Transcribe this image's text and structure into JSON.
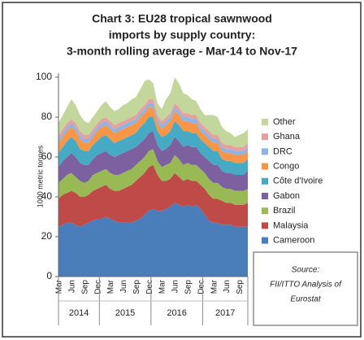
{
  "chart_data": {
    "type": "stacked_area",
    "title_lines": [
      "Chart 3: EU28 tropical sawnwood",
      "imports by supply country:",
      "3-month rolling average - Mar-14 to Nov-17"
    ],
    "y_label": "1000 metric tonnes",
    "source_lines": [
      "Source:",
      "FII/ITTO Analysis of",
      "Eurostat"
    ],
    "categories": [
      "Mar",
      null,
      null,
      "Jun",
      null,
      null,
      "Sep",
      null,
      null,
      "Dec",
      null,
      null,
      "Mar",
      null,
      null,
      "Jun",
      null,
      null,
      "Sep",
      null,
      null,
      "Dec",
      null,
      null,
      "Mar",
      null,
      null,
      "Jun",
      null,
      null,
      "Sep",
      null,
      null,
      "Dec",
      null,
      null,
      "Mar",
      null,
      null,
      "Jun",
      null,
      null,
      "Sep",
      null,
      null
    ],
    "x_groups": [
      "2014",
      "2015",
      "2016",
      "2017"
    ],
    "ylim": [
      0,
      100
    ],
    "yticks": [
      0,
      20,
      40,
      60,
      80,
      100
    ],
    "legend": "right",
    "series": [
      {
        "name": "Cameroon",
        "color": "#4a7ebb",
        "values": [
          25,
          26,
          27,
          27,
          26,
          25,
          26,
          27,
          28,
          29,
          29,
          30,
          29,
          28,
          27,
          27,
          27,
          27,
          28,
          29,
          31,
          33,
          34,
          33,
          33,
          34,
          35,
          37,
          36,
          35,
          36,
          35,
          36,
          34,
          31,
          28,
          27,
          27,
          26,
          26,
          26,
          25,
          25,
          25,
          25
        ]
      },
      {
        "name": "Malaysia",
        "color": "#be4b48",
        "values": [
          14,
          15,
          15,
          16,
          16,
          15,
          14,
          14,
          15,
          15,
          16,
          16,
          15,
          15,
          16,
          17,
          18,
          19,
          20,
          21,
          21,
          22,
          22,
          18,
          15,
          14,
          14,
          15,
          14,
          13,
          13,
          13,
          12,
          12,
          13,
          13,
          12,
          12,
          12,
          11,
          11,
          11,
          11,
          11,
          12
        ]
      },
      {
        "name": "Brazil",
        "color": "#98b954",
        "values": [
          8,
          8,
          9,
          9,
          8,
          8,
          7,
          7,
          8,
          8,
          8,
          8,
          8,
          8,
          8,
          8,
          8,
          8,
          8,
          8,
          8,
          8,
          8,
          7,
          7,
          8,
          8,
          9,
          9,
          8,
          8,
          8,
          8,
          8,
          8,
          8,
          8,
          8,
          7,
          7,
          7,
          7,
          7,
          7,
          7
        ]
      },
      {
        "name": "Gabon",
        "color": "#7d60a0",
        "values": [
          8,
          9,
          9,
          10,
          10,
          9,
          9,
          8,
          8,
          9,
          9,
          9,
          9,
          9,
          10,
          10,
          10,
          10,
          9,
          9,
          9,
          9,
          9,
          8,
          8,
          8,
          9,
          9,
          9,
          9,
          9,
          9,
          9,
          8,
          8,
          9,
          9,
          9,
          8,
          8,
          8,
          8,
          8,
          8,
          9
        ]
      },
      {
        "name": "Côte d'Ivoire",
        "color": "#46aac5",
        "values": [
          7,
          7,
          8,
          8,
          8,
          7,
          7,
          7,
          7,
          7,
          8,
          8,
          8,
          7,
          7,
          7,
          7,
          7,
          7,
          8,
          8,
          8,
          7,
          7,
          7,
          7,
          7,
          8,
          8,
          8,
          7,
          7,
          7,
          7,
          7,
          7,
          7,
          7,
          6,
          6,
          6,
          6,
          6,
          6,
          6
        ]
      },
      {
        "name": "Congo",
        "color": "#f79646",
        "values": [
          5,
          5,
          5,
          5,
          5,
          5,
          4,
          4,
          4,
          5,
          5,
          5,
          5,
          5,
          5,
          5,
          5,
          5,
          5,
          5,
          5,
          5,
          5,
          4,
          4,
          5,
          5,
          5,
          5,
          5,
          5,
          5,
          5,
          4,
          4,
          4,
          4,
          4,
          4,
          4,
          4,
          4,
          4,
          4,
          4
        ]
      },
      {
        "name": "DRC",
        "color": "#8eb4e3",
        "values": [
          2,
          2,
          2,
          2,
          2,
          2,
          2,
          2,
          2,
          2,
          2,
          2,
          2,
          2,
          2,
          2,
          2,
          2,
          2,
          2,
          2,
          2,
          2,
          2,
          2,
          2,
          2,
          2,
          2,
          2,
          2,
          2,
          2,
          2,
          2,
          2,
          2,
          2,
          2,
          2,
          2,
          2,
          2,
          2,
          2
        ]
      },
      {
        "name": "Ghana",
        "color": "#e6a0a0",
        "values": [
          2,
          2,
          2,
          2,
          2,
          2,
          2,
          2,
          2,
          2,
          2,
          2,
          2,
          2,
          2,
          2,
          2,
          2,
          2,
          2,
          2,
          2,
          2,
          2,
          2,
          2,
          2,
          2,
          2,
          2,
          2,
          2,
          2,
          2,
          2,
          2,
          2,
          2,
          2,
          2,
          2,
          2,
          2,
          2,
          2
        ]
      },
      {
        "name": "Other",
        "color": "#c3d69b",
        "values": [
          6,
          7,
          8,
          10,
          9,
          8,
          7,
          6,
          6,
          6,
          7,
          8,
          7,
          7,
          7,
          8,
          8,
          9,
          9,
          10,
          12,
          10,
          8,
          6,
          6,
          9,
          10,
          13,
          12,
          10,
          9,
          8,
          7,
          7,
          6,
          8,
          10,
          9,
          8,
          7,
          6,
          5,
          6,
          7,
          7
        ]
      }
    ]
  }
}
